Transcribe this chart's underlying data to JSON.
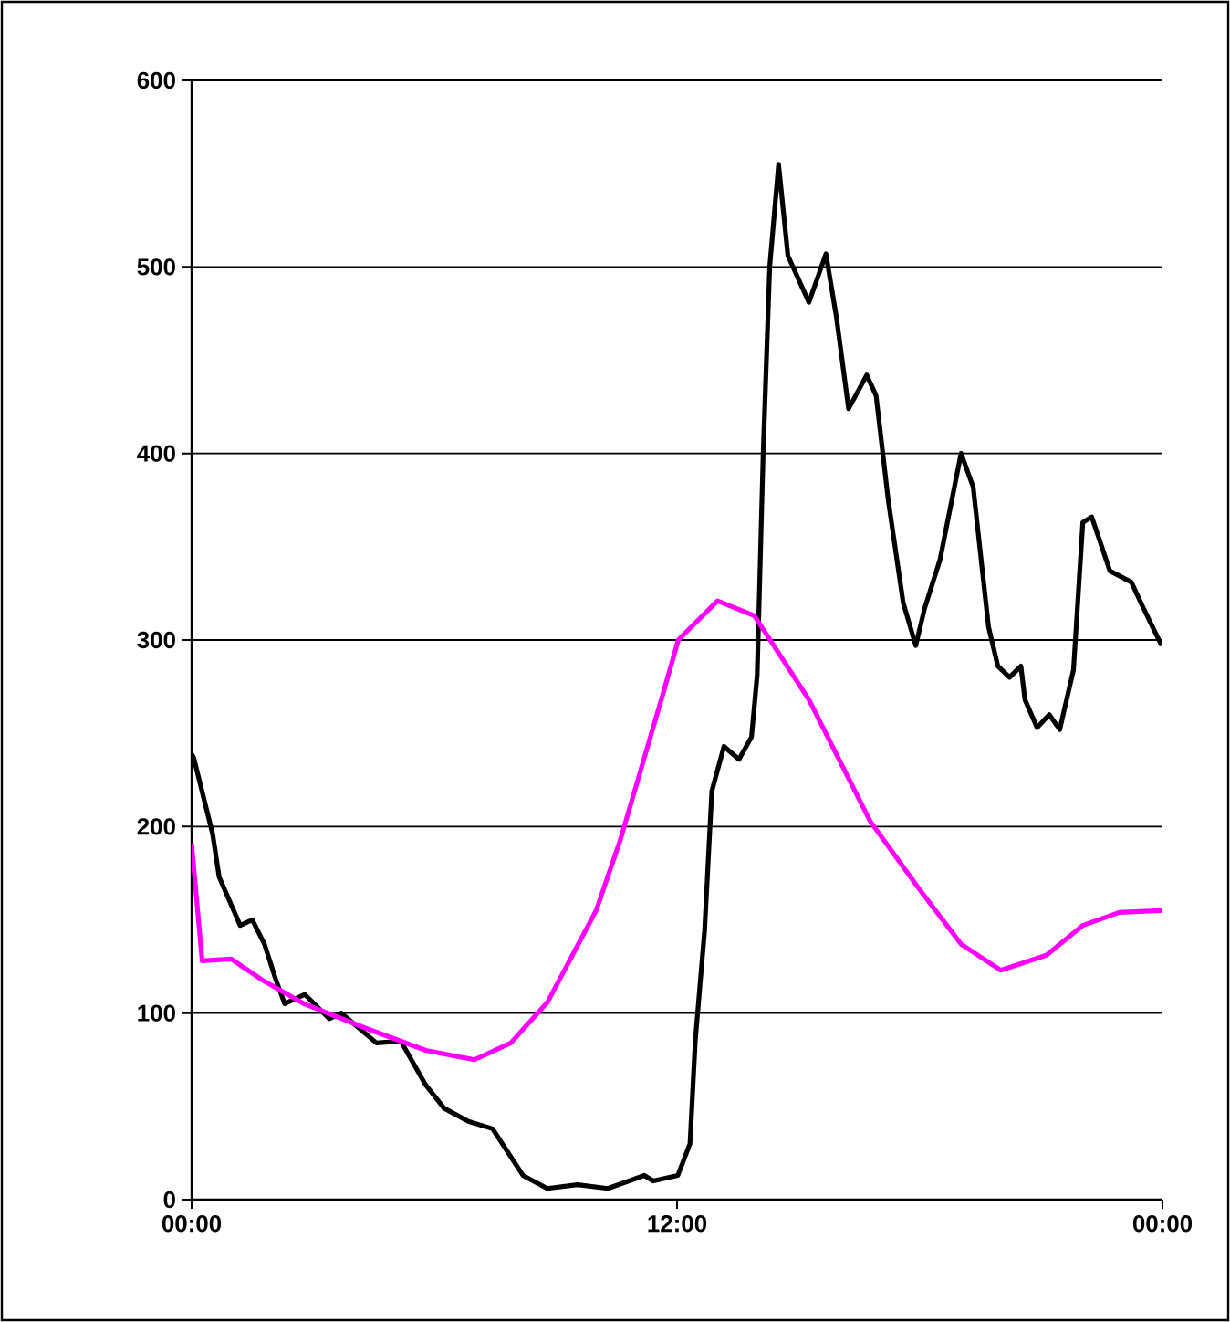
{
  "chart_data": {
    "type": "line",
    "xlim": [
      0,
      24
    ],
    "xticks": [
      {
        "value": 0,
        "label": "00:00"
      },
      {
        "value": 12,
        "label": "12:00"
      },
      {
        "value": 24,
        "label": "00:00"
      }
    ],
    "ylim": [
      0,
      600
    ],
    "yticks": [
      0,
      100,
      200,
      300,
      400,
      500,
      600
    ],
    "grid": "y",
    "marker": "none",
    "line_style": "solid",
    "series": [
      {
        "color": "#000000",
        "x": [
          0,
          0.05,
          0.52,
          0.68,
          1.2,
          1.5,
          1.8,
          2.08,
          2.3,
          2.8,
          3.4,
          3.7,
          4.57,
          5.17,
          5.77,
          6.24,
          6.84,
          7.44,
          8.19,
          8.79,
          9.54,
          10.29,
          11.19,
          11.41,
          12.02,
          12.32,
          12.45,
          12.68,
          12.86,
          13.16,
          13.53,
          13.84,
          13.98,
          14.13,
          14.29,
          14.51,
          14.74,
          15.26,
          15.68,
          15.94,
          16.24,
          16.69,
          16.92,
          17.22,
          17.59,
          17.9,
          18.12,
          18.5,
          19.02,
          19.32,
          19.7,
          19.93,
          20.22,
          20.5,
          20.6,
          20.9,
          21.2,
          21.46,
          21.8,
          22.03,
          22.25,
          22.7,
          23.23,
          23.53,
          23.98
        ],
        "values": [
          239,
          237,
          196,
          173,
          147,
          150,
          137,
          118,
          105,
          110,
          97,
          100,
          84,
          85,
          62,
          49,
          42,
          38,
          13,
          6,
          8,
          6,
          13,
          10,
          13,
          30,
          85,
          144,
          219,
          243,
          236,
          248,
          281,
          401,
          500,
          555,
          506,
          481,
          507,
          473,
          424,
          442,
          431,
          375,
          320,
          297,
          317,
          343,
          400,
          382,
          307,
          286,
          280,
          286,
          268,
          253,
          260,
          252,
          284,
          363,
          366,
          337,
          331,
          317,
          297
        ]
      },
      {
        "color": "#ff00ff",
        "x": [
          0,
          0.26,
          0.98,
          1.73,
          2.78,
          4.29,
          5.79,
          6.99,
          7.89,
          8.8,
          10.0,
          10.6,
          11.65,
          12.03,
          13.0,
          13.91,
          15.26,
          16.77,
          17.97,
          19.02,
          20.0,
          21.13,
          22.03,
          22.93,
          23.99
        ],
        "values": [
          191,
          128,
          129,
          118,
          105,
          92,
          80,
          75,
          84,
          106,
          155,
          193,
          271,
          300,
          321,
          313,
          268,
          203,
          167,
          137,
          123,
          131,
          147,
          154,
          155
        ]
      }
    ]
  }
}
